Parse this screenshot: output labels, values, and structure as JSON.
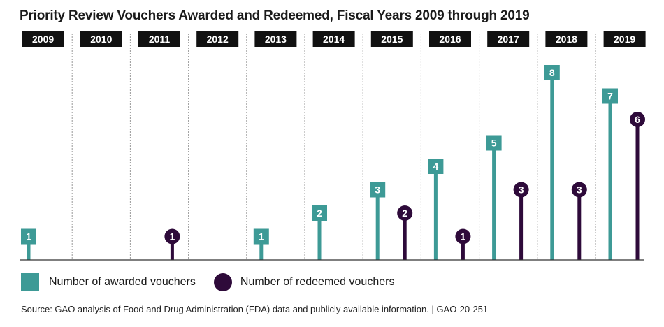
{
  "chart_data": {
    "type": "bar",
    "title": "Priority Review Vouchers Awarded and Redeemed, Fiscal Years 2009 through 2019",
    "categories": [
      "2009",
      "2010",
      "2011",
      "2012",
      "2013",
      "2014",
      "2015",
      "2016",
      "2017",
      "2018",
      "2019"
    ],
    "series": [
      {
        "name": "Number of awarded vouchers",
        "values": [
          1,
          0,
          0,
          0,
          1,
          2,
          3,
          4,
          5,
          8,
          7
        ]
      },
      {
        "name": "Number of redeemed vouchers",
        "values": [
          0,
          0,
          1,
          0,
          0,
          0,
          2,
          1,
          3,
          3,
          6
        ]
      }
    ],
    "ylim": [
      0,
      8
    ],
    "legend_position": "bottom-left",
    "colors": {
      "awarded": "#3d9a96",
      "redeemed": "#2e0a3a",
      "year_label_bg": "#111111"
    }
  },
  "source_note": "Source: GAO analysis of Food and Drug Administration (FDA) data and publicly available information.  |  GAO-20-251"
}
